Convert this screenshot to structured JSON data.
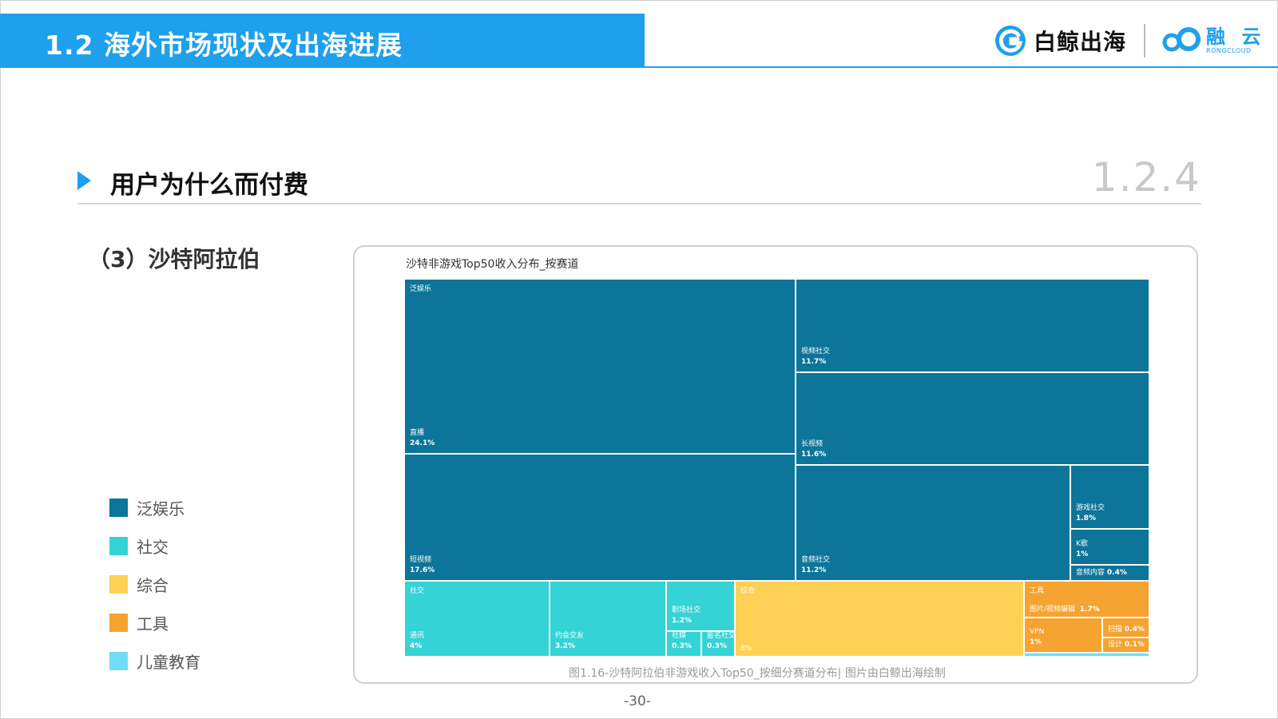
{
  "header": {
    "title": "1.2 海外市场现状及出海进展",
    "logo_text": "白鲸出海",
    "partner_cn": "融 云",
    "partner_en": "RONGCLOUD"
  },
  "section": {
    "title": "用户为什么而付费",
    "number": "1.2.4",
    "subheading": "（3）沙特阿拉伯"
  },
  "legend": [
    {
      "label": "泛娱乐",
      "color": "#0c7599"
    },
    {
      "label": "社交",
      "color": "#35d3d6"
    },
    {
      "label": "综合",
      "color": "#fdd155"
    },
    {
      "label": "工具",
      "color": "#f5a331"
    },
    {
      "label": "儿童教育",
      "color": "#72dcf4"
    }
  ],
  "chart_data": {
    "type": "treemap",
    "title": "沙特非游戏Top50收入分布_按赛道",
    "groups": [
      {
        "name": "泛娱乐",
        "color": "#0c7599",
        "children": [
          {
            "name": "直播",
            "value": 24.1,
            "label": "24.1%"
          },
          {
            "name": "短视频",
            "value": 17.6,
            "label": "17.6%"
          },
          {
            "name": "视频社交",
            "value": 11.7,
            "label": "11.7%"
          },
          {
            "name": "长视频",
            "value": 11.6,
            "label": "11.6%"
          },
          {
            "name": "音频社交",
            "value": 11.2,
            "label": "11.2%"
          },
          {
            "name": "游戏社交",
            "value": 1.8,
            "label": "1.8%"
          },
          {
            "name": "K歌",
            "value": 1,
            "label": "1%"
          },
          {
            "name": "音频内容",
            "value": 0.4,
            "label": "0.4%"
          }
        ]
      },
      {
        "name": "社交",
        "color": "#35d3d6",
        "children": [
          {
            "name": "通讯",
            "value": 4,
            "label": "4%"
          },
          {
            "name": "约会交友",
            "value": 3.2,
            "label": "3.2%"
          },
          {
            "name": "职场社交",
            "value": 1.2,
            "label": "1.2%"
          },
          {
            "name": "社媒",
            "value": 0.3,
            "label": "0.3%"
          },
          {
            "name": "匿名社交",
            "value": 0.3,
            "label": "0.3%"
          }
        ]
      },
      {
        "name": "综合",
        "color": "#fdd155",
        "children": [
          {
            "name": "",
            "value": 8,
            "label": "8%"
          }
        ]
      },
      {
        "name": "工具",
        "color": "#f5a331",
        "children": [
          {
            "name": "图片/视频编辑",
            "value": 1.7,
            "label": "1.7%"
          },
          {
            "name": "VPN",
            "value": 1,
            "label": "1%"
          },
          {
            "name": "扫描",
            "value": 0.4,
            "label": "0.4%"
          },
          {
            "name": "设计",
            "value": 0.1,
            "label": "0.1%"
          }
        ]
      },
      {
        "name": "儿童教育",
        "color": "#72dcf4",
        "children": []
      }
    ]
  },
  "caption": "图1.16-沙特阿拉伯非游戏收入Top50_按细分赛道分布| 图片由白鲸出海绘制",
  "page_number": "-30-"
}
